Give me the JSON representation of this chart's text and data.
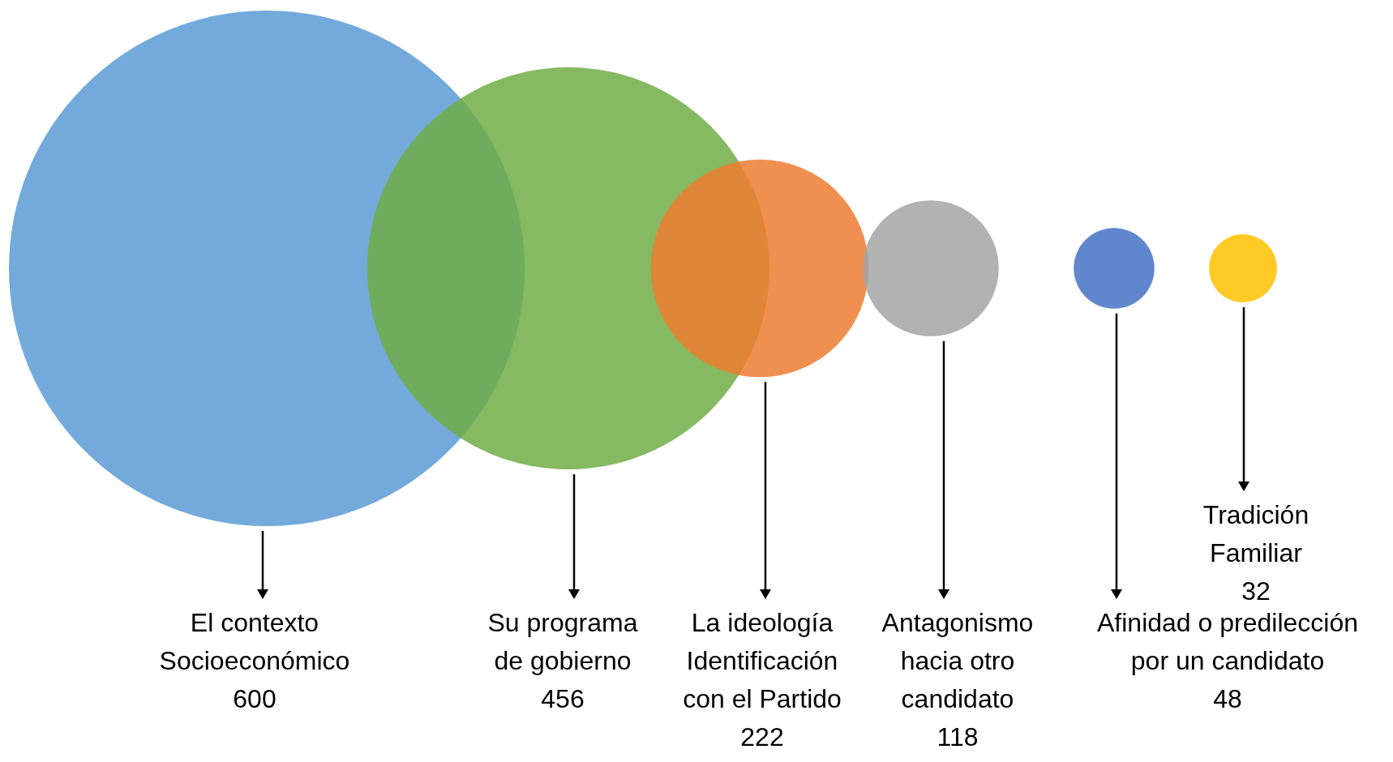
{
  "chart_data": {
    "type": "other",
    "categories": [
      "El contexto\nSocioeconómico",
      "Su programa\nde gobierno",
      "La ideología\nIdentificación\ncon el Partido",
      "Antagonismo\nhacia otro\ncandidato",
      "Afinidad o predilección\npor un candidato",
      "Tradición\nFamiliar"
    ],
    "values": [
      600,
      456,
      222,
      118,
      48,
      32
    ],
    "colors": [
      "#5b9bd5",
      "#70ad47",
      "#ed7d31",
      "#a5a5a5",
      "#4472c4",
      "#ffc000"
    ],
    "data_labels": true
  }
}
